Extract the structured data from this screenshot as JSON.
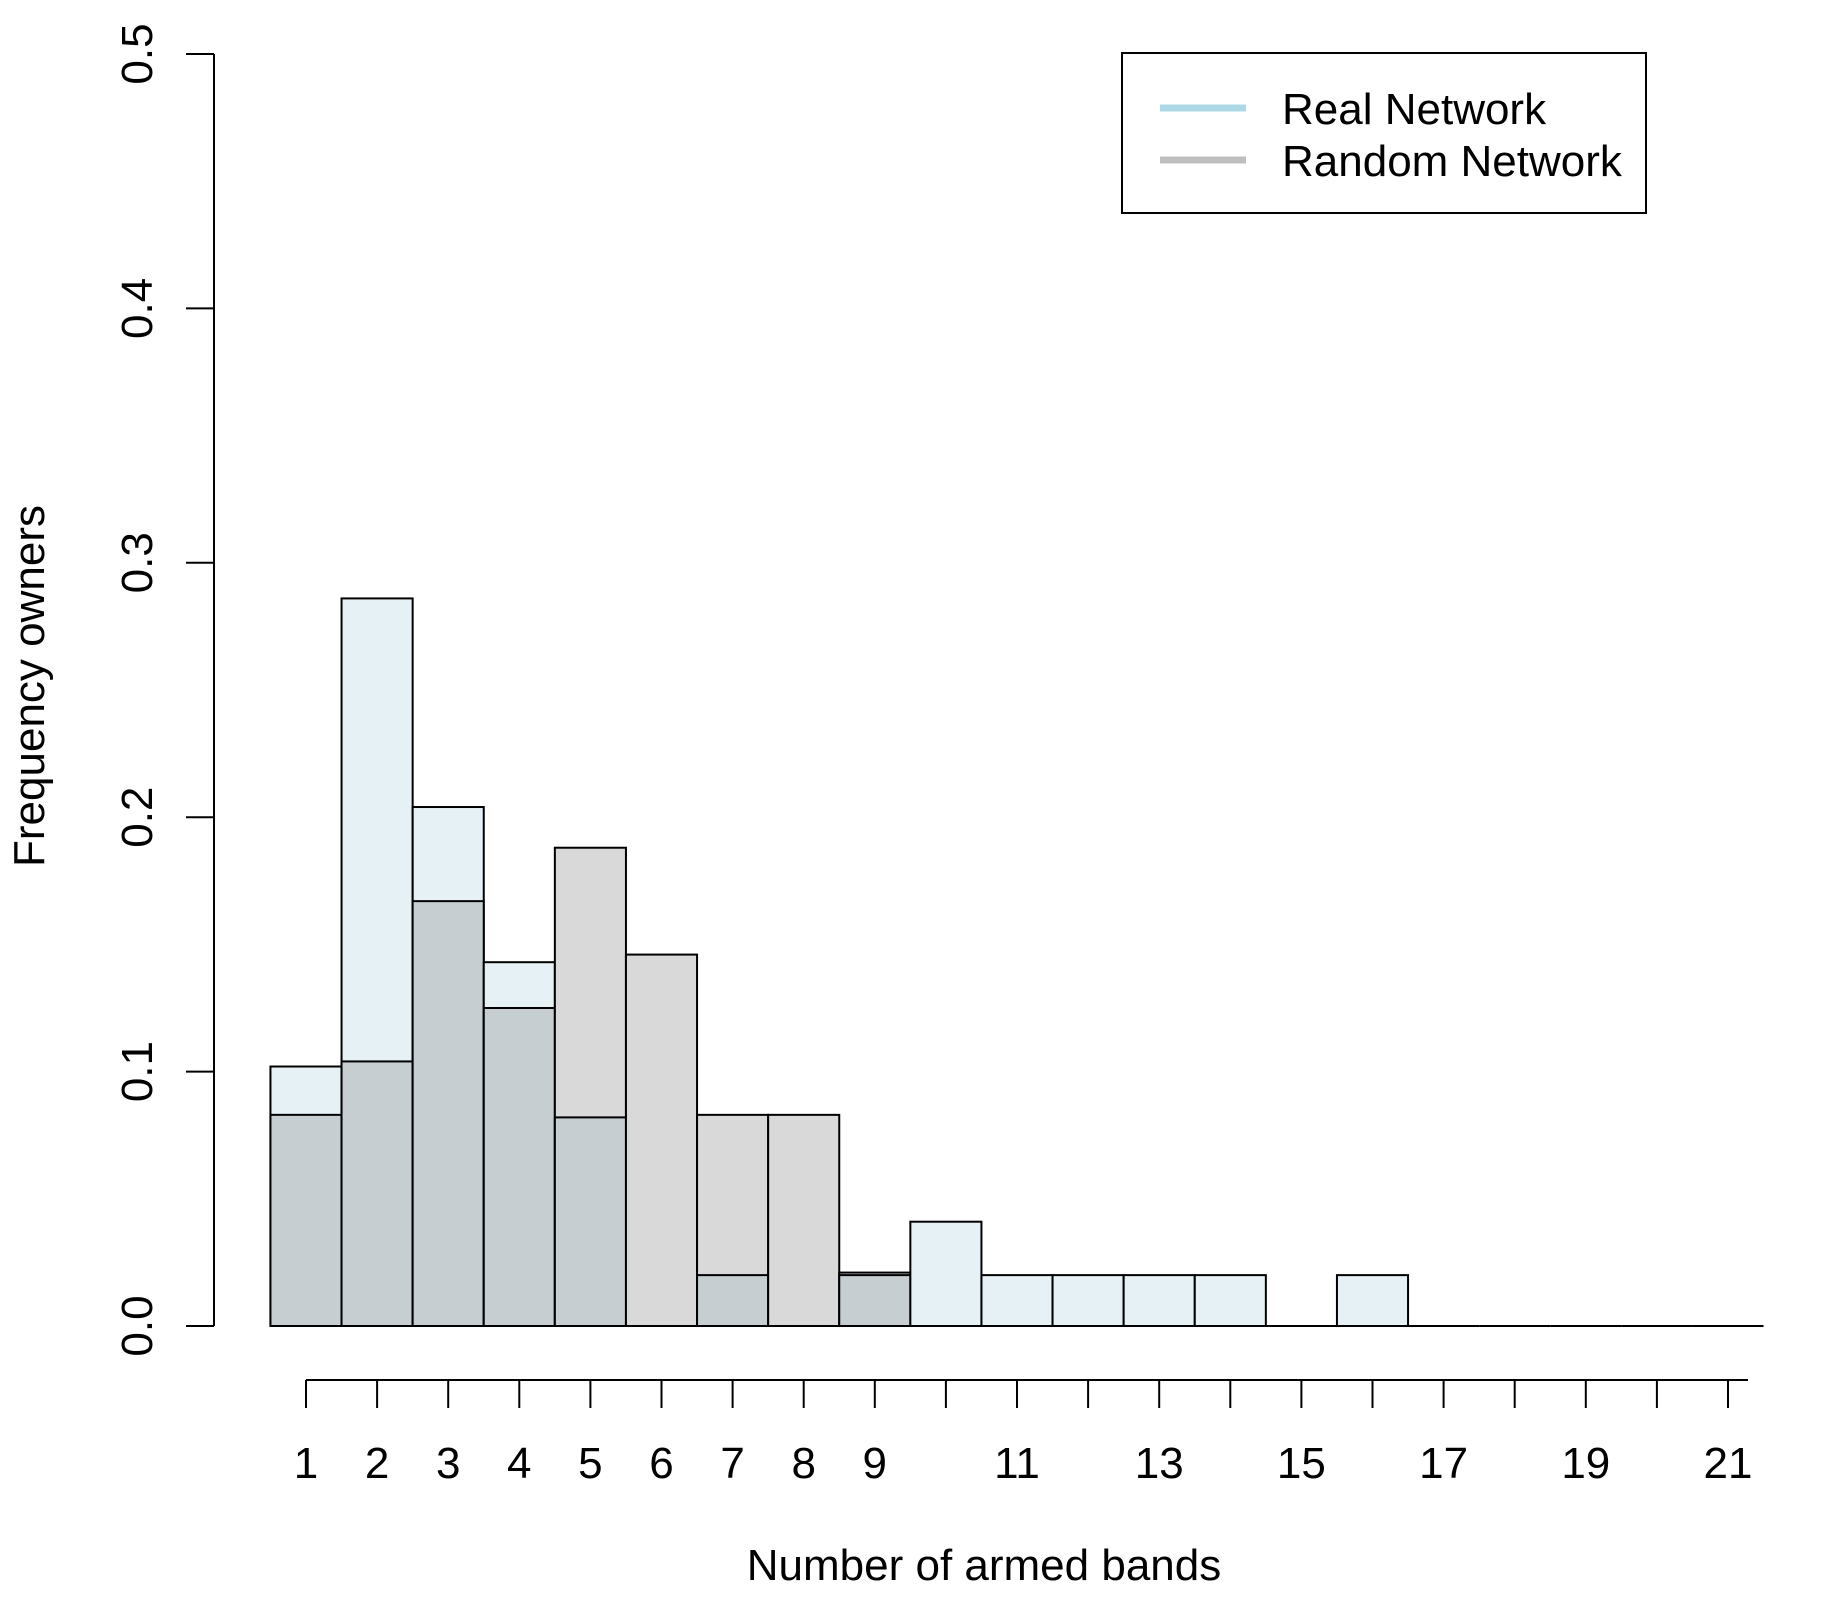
{
  "chart_data": {
    "type": "bar",
    "title": "",
    "xlabel": "Number of armed bands",
    "ylabel": "Frequency owners",
    "ylim": [
      0,
      0.5
    ],
    "y_ticks": [
      "0.0",
      "0.1",
      "0.2",
      "0.3",
      "0.4",
      "0.5"
    ],
    "x_tick_labels": [
      "1",
      "2",
      "3",
      "4",
      "5",
      "6",
      "7",
      "8",
      "9",
      "11",
      "13",
      "15",
      "17",
      "19",
      "21"
    ],
    "x_tick_label_values": [
      1,
      2,
      3,
      4,
      5,
      6,
      7,
      8,
      9,
      11,
      13,
      15,
      17,
      19,
      21
    ],
    "categories": [
      1,
      2,
      3,
      4,
      5,
      6,
      7,
      8,
      9,
      10,
      11,
      12,
      13,
      14,
      15,
      16,
      17,
      18,
      19,
      20,
      21
    ],
    "series": [
      {
        "name": "Real Network",
        "color": "#add8e6",
        "fill": "#e6f1f5",
        "values": [
          0.102,
          0.286,
          0.204,
          0.143,
          0.082,
          0,
          0.02,
          0,
          0.02,
          0.041,
          0.02,
          0.02,
          0.02,
          0.02,
          0,
          0.02,
          0,
          0,
          0,
          0,
          0
        ]
      },
      {
        "name": "Random Network",
        "color": "#bebebe",
        "fill": "#d9d9d9",
        "values": [
          0.083,
          0.104,
          0.167,
          0.125,
          0.188,
          0.146,
          0.083,
          0.083,
          0.021,
          0,
          0,
          0,
          0,
          0,
          0,
          0,
          0,
          0,
          0,
          0,
          0
        ]
      }
    ],
    "overlap_fill": "#c6ced2",
    "legend_position": "top-right",
    "grid": false
  }
}
